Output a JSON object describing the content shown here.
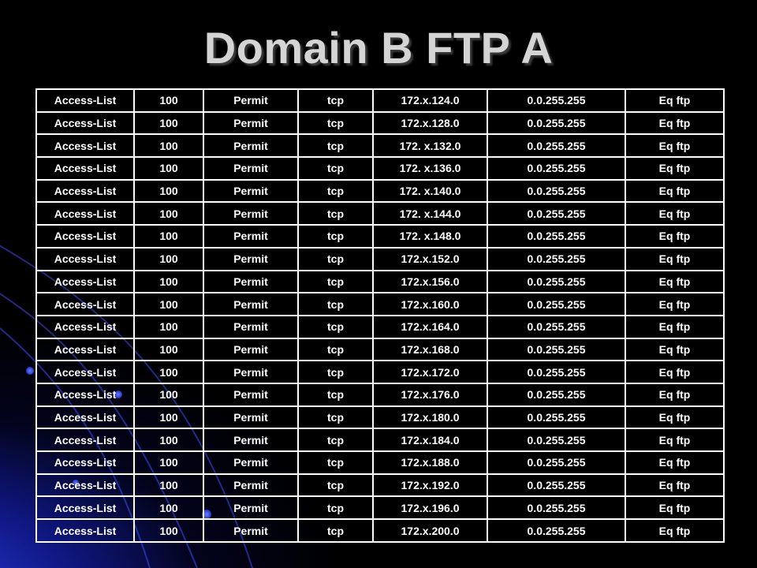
{
  "slide": {
    "title": "Domain B FTP A"
  },
  "colors": {
    "background": "#000000",
    "accent_blue": "#2a3be6",
    "title_text": "#d4d4d4",
    "table_text": "#ffffff",
    "table_border": "#ffffff"
  },
  "table": {
    "rows": [
      [
        "Access-List",
        "100",
        "Permit",
        "tcp",
        "172.x.124.0",
        "0.0.255.255",
        "Eq ftp"
      ],
      [
        "Access-List",
        "100",
        "Permit",
        "tcp",
        "172.x.128.0",
        "0.0.255.255",
        "Eq ftp"
      ],
      [
        "Access-List",
        "100",
        "Permit",
        "tcp",
        "172. x.132.0",
        "0.0.255.255",
        "Eq ftp"
      ],
      [
        "Access-List",
        "100",
        "Permit",
        "tcp",
        "172. x.136.0",
        "0.0.255.255",
        "Eq ftp"
      ],
      [
        "Access-List",
        "100",
        "Permit",
        "tcp",
        "172. x.140.0",
        "0.0.255.255",
        "Eq ftp"
      ],
      [
        "Access-List",
        "100",
        "Permit",
        "tcp",
        "172. x.144.0",
        "0.0.255.255",
        "Eq ftp"
      ],
      [
        "Access-List",
        "100",
        "Permit",
        "tcp",
        "172. x.148.0",
        "0.0.255.255",
        "Eq ftp"
      ],
      [
        "Access-List",
        "100",
        "Permit",
        "tcp",
        "172.x.152.0",
        "0.0.255.255",
        "Eq ftp"
      ],
      [
        "Access-List",
        "100",
        "Permit",
        "tcp",
        "172.x.156.0",
        "0.0.255.255",
        "Eq ftp"
      ],
      [
        "Access-List",
        "100",
        "Permit",
        "tcp",
        "172.x.160.0",
        "0.0.255.255",
        "Eq ftp"
      ],
      [
        "Access-List",
        "100",
        "Permit",
        "tcp",
        "172.x.164.0",
        "0.0.255.255",
        "Eq ftp"
      ],
      [
        "Access-List",
        "100",
        "Permit",
        "tcp",
        "172.x.168.0",
        "0.0.255.255",
        "Eq ftp"
      ],
      [
        "Access-List",
        "100",
        "Permit",
        "tcp",
        "172.x.172.0",
        "0.0.255.255",
        "Eq ftp"
      ],
      [
        "Access-List",
        "100",
        "Permit",
        "tcp",
        "172.x.176.0",
        "0.0.255.255",
        "Eq ftp"
      ],
      [
        "Access-List",
        "100",
        "Permit",
        "tcp",
        "172.x.180.0",
        "0.0.255.255",
        "Eq ftp"
      ],
      [
        "Access-List",
        "100",
        "Permit",
        "tcp",
        "172.x.184.0",
        "0.0.255.255",
        "Eq ftp"
      ],
      [
        "Access-List",
        "100",
        "Permit",
        "tcp",
        "172.x.188.0",
        "0.0.255.255",
        "Eq ftp"
      ],
      [
        "Access-List",
        "100",
        "Permit",
        "tcp",
        "172.x.192.0",
        "0.0.255.255",
        "Eq ftp"
      ],
      [
        "Access-List",
        "100",
        "Permit",
        "tcp",
        "172.x.196.0",
        "0.0.255.255",
        "Eq ftp"
      ],
      [
        "Access-List",
        "100",
        "Permit",
        "tcp",
        "172.x.200.0",
        "0.0.255.255",
        "Eq ftp"
      ]
    ]
  }
}
